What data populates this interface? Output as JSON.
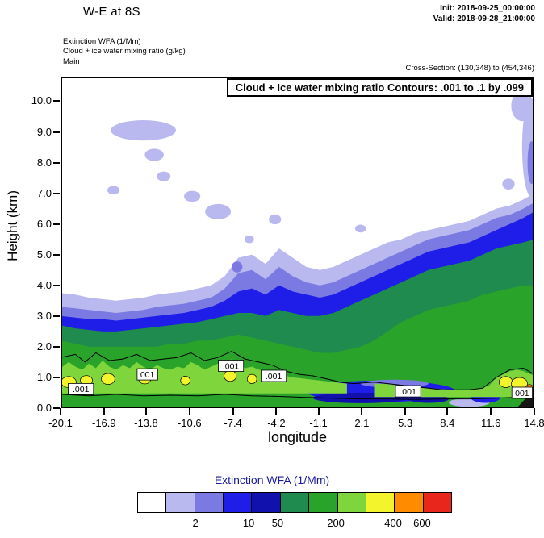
{
  "header": {
    "title": "W-E at 8S",
    "init_line": "Init: 2018-09-25_00:00:00",
    "valid_line": "Valid: 2018-09-28_21:00:00",
    "meta_lines": [
      "Extinction WFA  (1/Mm)",
      "Cloud + ice water mixing ratio  (g/kg)",
      "Main"
    ],
    "cross_section": "Cross-Section: (130,348) to (454,346)"
  },
  "plot": {
    "inner_title": "Cloud + Ice water mixing ratio Contours: .001 to .1 by .099",
    "xlabel": "longitude",
    "ylabel": "Height (km)",
    "x_ticks": [
      "-20.1",
      "-16.9",
      "-13.8",
      "-10.6",
      "-7.4",
      "-4.2",
      "-1.1",
      "2.1",
      "5.3",
      "8.4",
      "11.6",
      "14.8"
    ],
    "y_ticks": [
      "0.0",
      "1.0",
      "2.0",
      "3.0",
      "4.0",
      "5.0",
      "6.0",
      "7.0",
      "8.0",
      "9.0",
      "10.0"
    ]
  },
  "colorbar": {
    "title": "Extinction WFA  (1/Mm)",
    "colors": [
      "#ffffff",
      "#b9b9f0",
      "#7a7ae2",
      "#1e1ee8",
      "#1111ad",
      "#1f8b4e",
      "#2aa32a",
      "#7fd63c",
      "#f4f42c",
      "#ff8c00",
      "#e8261a"
    ],
    "labels": [
      {
        "text": "2",
        "pct": 18.5
      },
      {
        "text": "10",
        "pct": 35.4
      },
      {
        "text": "50",
        "pct": 44.6
      },
      {
        "text": "200",
        "pct": 63.1
      },
      {
        "text": "400",
        "pct": 81.3
      },
      {
        "text": "600",
        "pct": 90.5
      }
    ]
  },
  "chart_data": {
    "type": "filled-contour-cross-section",
    "title": "Cloud + Ice water mixing ratio Contours: .001 to .1 by .099",
    "xlabel": "longitude",
    "ylabel": "Height (km)",
    "x_min": -20.1,
    "x_max": 14.8,
    "y_min": 0,
    "y_max": 10.8,
    "x_axis_ticks": [
      -20.1,
      -16.9,
      -13.8,
      -10.6,
      -7.4,
      -4.2,
      -1.1,
      2.1,
      5.3,
      8.4,
      11.6,
      14.8
    ],
    "y_axis_ticks": [
      0,
      1,
      2,
      3,
      4,
      5,
      6,
      7,
      8,
      9,
      10
    ],
    "contour_spec": {
      "from": 0.001,
      "to": 0.1,
      "by": 0.099
    },
    "colorbar_labeled_levels": [
      2,
      10,
      50,
      200,
      400,
      600
    ],
    "x_samples": [
      -20.1,
      -19,
      -18,
      -17,
      -16,
      -15,
      -14,
      -13,
      -12,
      -11,
      -10,
      -9,
      -8,
      -7,
      -6,
      -5,
      -4,
      -3,
      -2,
      -1,
      0,
      1,
      2,
      3,
      4,
      5,
      6,
      7,
      8,
      9,
      10,
      11,
      12,
      13,
      14,
      14.8
    ],
    "bands": [
      {
        "name": "extinction-ge-2",
        "color": "#b9b9f0",
        "top": [
          3.75,
          3.7,
          3.6,
          3.55,
          3.5,
          3.55,
          3.6,
          3.7,
          3.75,
          3.8,
          3.9,
          4.0,
          4.3,
          4.9,
          5.0,
          4.7,
          5.2,
          4.9,
          4.6,
          4.5,
          4.6,
          4.8,
          5.0,
          5.2,
          5.4,
          5.5,
          5.7,
          5.8,
          5.9,
          6.0,
          6.1,
          6.3,
          6.5,
          6.6,
          6.8,
          7.0
        ]
      },
      {
        "name": "extinction-ge-10",
        "color": "#7a7ae2",
        "top": [
          3.3,
          3.25,
          3.2,
          3.15,
          3.1,
          3.15,
          3.2,
          3.3,
          3.35,
          3.4,
          3.5,
          3.6,
          3.9,
          4.4,
          4.5,
          4.2,
          4.6,
          4.3,
          4.1,
          4.0,
          4.1,
          4.3,
          4.5,
          4.7,
          4.9,
          5.1,
          5.3,
          5.5,
          5.6,
          5.7,
          5.8,
          6.0,
          6.2,
          6.3,
          6.5,
          6.7
        ]
      },
      {
        "name": "extinction-ge-50",
        "color": "#1e1ee8",
        "top": [
          3.0,
          2.95,
          2.9,
          2.9,
          2.85,
          2.9,
          2.95,
          3.0,
          3.05,
          3.1,
          3.2,
          3.3,
          3.5,
          3.8,
          3.9,
          3.7,
          4.0,
          3.8,
          3.7,
          3.6,
          3.7,
          3.9,
          4.1,
          4.3,
          4.5,
          4.7,
          4.9,
          5.1,
          5.2,
          5.3,
          5.4,
          5.6,
          5.8,
          6.0,
          6.2,
          6.4
        ]
      },
      {
        "name": "extinction-ge-100",
        "color": "#1f8b4e",
        "top": [
          2.7,
          2.6,
          2.55,
          2.5,
          2.5,
          2.55,
          2.6,
          2.65,
          2.7,
          2.75,
          2.8,
          2.9,
          3.0,
          3.1,
          3.1,
          3.0,
          3.2,
          3.1,
          3.0,
          3.0,
          3.1,
          3.3,
          3.5,
          3.7,
          3.9,
          4.1,
          4.3,
          4.5,
          4.6,
          4.7,
          4.8,
          5.0,
          5.2,
          5.3,
          5.4,
          5.5
        ]
      },
      {
        "name": "extinction-ge-200",
        "color": "#2aa32a",
        "top": [
          2.2,
          2.1,
          2.0,
          2.0,
          2.0,
          2.0,
          2.0,
          2.0,
          2.1,
          2.1,
          2.2,
          2.2,
          2.3,
          2.4,
          2.3,
          2.2,
          2.1,
          2.0,
          1.9,
          1.8,
          1.8,
          1.9,
          2.0,
          2.2,
          2.5,
          2.8,
          3.0,
          3.2,
          3.3,
          3.4,
          3.5,
          3.7,
          3.8,
          3.9,
          4.0,
          4.0
        ]
      }
    ],
    "patches": [
      {
        "color": "#b9b9f0",
        "x": -14.0,
        "y": 9.05,
        "rx": 2.4,
        "ry": 0.33
      },
      {
        "color": "#b9b9f0",
        "x": -13.2,
        "y": 8.25,
        "rx": 0.7,
        "ry": 0.2
      },
      {
        "color": "#b9b9f0",
        "x": -12.5,
        "y": 7.55,
        "rx": 0.5,
        "ry": 0.16
      },
      {
        "color": "#b9b9f0",
        "x": -16.2,
        "y": 7.1,
        "rx": 0.45,
        "ry": 0.14
      },
      {
        "color": "#b9b9f0",
        "x": -10.4,
        "y": 6.9,
        "rx": 0.6,
        "ry": 0.18
      },
      {
        "color": "#b9b9f0",
        "x": -8.5,
        "y": 6.4,
        "rx": 0.95,
        "ry": 0.25
      },
      {
        "color": "#b9b9f0",
        "x": -4.3,
        "y": 6.15,
        "rx": 0.45,
        "ry": 0.16
      },
      {
        "color": "#b9b9f0",
        "x": -6.2,
        "y": 5.5,
        "rx": 0.35,
        "ry": 0.13
      },
      {
        "color": "#b9b9f0",
        "x": 2.0,
        "y": 5.85,
        "rx": 0.4,
        "ry": 0.13
      },
      {
        "color": "#b9b9f0",
        "x": 13.9,
        "y": 9.85,
        "rx": 0.8,
        "ry": 0.5
      },
      {
        "color": "#b9b9f0",
        "x": 14.55,
        "y": 8.5,
        "rx": 0.65,
        "ry": 1.6
      },
      {
        "color": "#b9b9f0",
        "x": 12.9,
        "y": 7.3,
        "rx": 0.45,
        "ry": 0.18
      },
      {
        "color": "#7a7ae2",
        "x": 14.6,
        "y": 8.0,
        "rx": 0.3,
        "ry": 0.7
      },
      {
        "color": "#7a7ae2",
        "x": -7.1,
        "y": 4.6,
        "rx": 0.4,
        "ry": 0.18
      },
      {
        "color": "#1e1ee8",
        "x": 3.5,
        "y": 0.55,
        "rx": 5.5,
        "ry": 0.35
      },
      {
        "color": "#7a7ae2",
        "x": 4.5,
        "y": 0.8,
        "rx": 2.5,
        "ry": 0.13
      },
      {
        "color": "#1111ad",
        "x": 2.0,
        "y": 0.33,
        "rx": 3.5,
        "ry": 0.17
      },
      {
        "color": "#1111ad",
        "x": 7.0,
        "y": 0.3,
        "rx": 1.5,
        "ry": 0.13
      },
      {
        "color": "#b9b9f0",
        "x": 10.0,
        "y": 0.18,
        "rx": 1.5,
        "ry": 0.14
      },
      {
        "color": "#1e1ee8",
        "x": 11.2,
        "y": 0.35,
        "rx": 1.1,
        "ry": 0.18
      }
    ],
    "polygons": [
      {
        "name": "bright-green-band-west",
        "color": "#7fd63c",
        "bottom": 0.48,
        "x": [
          -20.1,
          -19.5,
          -19,
          -18.5,
          -18,
          -17.5,
          -17,
          -16.5,
          -16,
          -15.5,
          -15,
          -14.5,
          -14,
          -13.5,
          -13,
          -12.5,
          -12,
          -11.5,
          -11,
          -10.5,
          -10,
          -9.5,
          -9,
          -8.5,
          -8,
          -7.5,
          -7,
          -6.5,
          -6,
          -5.5,
          -5,
          -4.5,
          -4,
          -3,
          -2,
          -1,
          0,
          1
        ],
        "top": [
          1.3,
          1.5,
          1.35,
          1.25,
          1.45,
          1.3,
          1.55,
          1.35,
          1.25,
          1.4,
          1.3,
          1.5,
          1.35,
          1.25,
          1.4,
          1.3,
          1.25,
          1.35,
          1.3,
          1.5,
          1.4,
          1.25,
          1.35,
          1.45,
          1.3,
          1.6,
          1.45,
          1.3,
          1.35,
          1.25,
          1.2,
          1.15,
          1.1,
          1.0,
          0.95,
          0.9,
          0.85,
          0.8
        ]
      },
      {
        "name": "bright-green-band-east",
        "color": "#7fd63c",
        "bottom": 0.36,
        "x": [
          3,
          4,
          5,
          6,
          7,
          8,
          9,
          10,
          11,
          11.5,
          12,
          12.5,
          13,
          13.5,
          14,
          14.8
        ],
        "top": [
          0.8,
          0.78,
          0.72,
          0.68,
          0.65,
          0.62,
          0.6,
          0.6,
          0.65,
          0.75,
          1.0,
          1.1,
          1.2,
          1.25,
          1.2,
          1.05
        ]
      }
    ],
    "blobs": [
      {
        "color": "#f4f42c",
        "x": -19.5,
        "y": 0.85,
        "rx": 0.55,
        "ry": 0.18
      },
      {
        "color": "#f4f42c",
        "x": -18.2,
        "y": 0.9,
        "rx": 0.45,
        "ry": 0.16
      },
      {
        "color": "#f4f42c",
        "x": -16.6,
        "y": 0.95,
        "rx": 0.5,
        "ry": 0.18
      },
      {
        "color": "#f4f42c",
        "x": -13.9,
        "y": 0.95,
        "rx": 0.45,
        "ry": 0.16
      },
      {
        "color": "#f4f42c",
        "x": -10.9,
        "y": 0.9,
        "rx": 0.35,
        "ry": 0.14
      },
      {
        "color": "#f4f42c",
        "x": -7.6,
        "y": 1.05,
        "rx": 0.45,
        "ry": 0.18
      },
      {
        "color": "#f4f42c",
        "x": -6.0,
        "y": 0.95,
        "rx": 0.35,
        "ry": 0.15
      },
      {
        "color": "#f4f42c",
        "x": 12.7,
        "y": 0.85,
        "rx": 0.5,
        "ry": 0.18
      },
      {
        "color": "#f4f42c",
        "x": 13.7,
        "y": 0.8,
        "rx": 0.6,
        "ry": 0.2
      },
      {
        "color": "#ff8c00",
        "x": 14.45,
        "y": 0.65,
        "rx": 0.28,
        "ry": 0.12
      }
    ],
    "terrain": {
      "color": "#161616",
      "points": [
        [
          13.5,
          0
        ],
        [
          14.8,
          0.62
        ],
        [
          14.8,
          0
        ]
      ]
    },
    "contour_lines": [
      [
        [
          -20.1,
          1.65
        ],
        [
          -19,
          1.75
        ],
        [
          -18.3,
          1.5
        ],
        [
          -17.5,
          1.8
        ],
        [
          -16.5,
          1.55
        ],
        [
          -15.5,
          1.6
        ],
        [
          -14.5,
          1.75
        ],
        [
          -13.5,
          1.55
        ],
        [
          -12.5,
          1.6
        ],
        [
          -11.5,
          1.65
        ],
        [
          -10.5,
          1.8
        ],
        [
          -9.5,
          1.55
        ],
        [
          -8.5,
          1.65
        ],
        [
          -7.5,
          1.85
        ],
        [
          -6.5,
          1.6
        ],
        [
          -5.5,
          1.5
        ],
        [
          -4.5,
          1.4
        ],
        [
          -3.5,
          1.2
        ],
        [
          -2.5,
          1.1
        ],
        [
          -1.5,
          1.05
        ],
        [
          -0.5,
          0.95
        ],
        [
          0.5,
          0.85
        ],
        [
          1.5,
          0.8
        ],
        [
          3,
          0.85
        ],
        [
          4,
          0.8
        ],
        [
          5,
          0.75
        ],
        [
          6,
          0.7
        ],
        [
          7,
          0.65
        ],
        [
          8,
          0.6
        ],
        [
          9,
          0.6
        ],
        [
          10,
          0.6
        ],
        [
          11,
          0.65
        ],
        [
          12,
          1.0
        ],
        [
          13,
          1.25
        ],
        [
          14,
          1.3
        ],
        [
          14.8,
          1.1
        ]
      ],
      [
        [
          -20.1,
          0.45
        ],
        [
          -18,
          0.4
        ],
        [
          -16,
          0.45
        ],
        [
          -14,
          0.4
        ],
        [
          -12,
          0.42
        ],
        [
          -10,
          0.4
        ],
        [
          -8,
          0.45
        ],
        [
          -6,
          0.4
        ],
        [
          -4,
          0.38
        ],
        [
          -2,
          0.35
        ],
        [
          0,
          0.32
        ],
        [
          2,
          0.3
        ],
        [
          4,
          0.3
        ],
        [
          6,
          0.28
        ],
        [
          8,
          0.3
        ],
        [
          10,
          0.3
        ],
        [
          12,
          0.32
        ],
        [
          13.4,
          0.35
        ]
      ]
    ],
    "contour_labels": [
      {
        "text": ".001",
        "x": -18.6,
        "y": 0.62
      },
      {
        "text": "001",
        "x": -13.7,
        "y": 1.1
      },
      {
        "text": ".001",
        "x": -7.55,
        "y": 1.38
      },
      {
        "text": ".001",
        "x": -4.4,
        "y": 1.05
      },
      {
        "text": ".001",
        "x": 5.5,
        "y": 0.55
      },
      {
        "text": "001",
        "x": 13.9,
        "y": 0.5
      }
    ]
  }
}
